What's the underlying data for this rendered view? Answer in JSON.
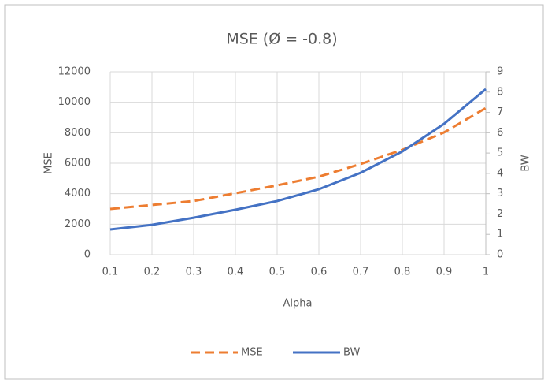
{
  "chart_data": {
    "type": "line",
    "title": "MSE (Ø = -0.8)",
    "x_label": "Alpha",
    "y_label": "MSE",
    "y2_label": "BW",
    "x": [
      0.1,
      0.2,
      0.3,
      0.4,
      0.5,
      0.6,
      0.7,
      0.8,
      0.9,
      1
    ],
    "series": [
      {
        "name": "MSE",
        "color": "#ed7d31",
        "dash": true,
        "values": [
          3000,
          3260,
          3520,
          4030,
          4550,
          5120,
          5950,
          6880,
          8020,
          9620
        ]
      },
      {
        "name": "BW",
        "color": "#4472c4",
        "dash": false,
        "axis": "y2",
        "values": [
          1.24,
          1.47,
          1.82,
          2.21,
          2.64,
          3.22,
          4.03,
          5.08,
          6.44,
          8.15
        ]
      }
    ],
    "xlim": [
      0.1,
      1
    ],
    "xticks": [
      0.1,
      0.2,
      0.3,
      0.4,
      0.5,
      0.6,
      0.7,
      0.8,
      0.9,
      1
    ],
    "ylim": [
      0,
      12000
    ],
    "yticks": [
      0,
      2000,
      4000,
      6000,
      8000,
      10000,
      12000
    ],
    "y2lim": [
      0,
      9
    ],
    "y2ticks": [
      0,
      1,
      2,
      3,
      4,
      5,
      6,
      7,
      8,
      9
    ],
    "grid": true,
    "legend": "bottom"
  }
}
